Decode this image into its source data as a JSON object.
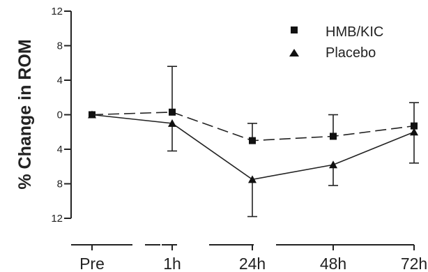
{
  "chart_data": {
    "type": "line",
    "title": "",
    "xlabel": "",
    "ylabel": "% Change in ROM",
    "categories": [
      "Pre",
      "1h",
      "24h",
      "48h",
      "72h"
    ],
    "y_ticks": [
      "12",
      "8",
      "4",
      "0",
      "4",
      "8",
      "12"
    ],
    "ylim": [
      -12,
      12
    ],
    "grid": false,
    "legend_position": "top-right",
    "series": [
      {
        "name": "HMB/KIC",
        "marker": "square",
        "line_style": "dashed",
        "values": [
          0,
          0.3,
          -3,
          -2.5,
          -1.3
        ],
        "error_plus": [
          0,
          5.3,
          2.0,
          2.5,
          2.7
        ],
        "error_minus": [
          0,
          0,
          0,
          0,
          0
        ]
      },
      {
        "name": "Placebo",
        "marker": "triangle",
        "line_style": "solid",
        "values": [
          0,
          -1,
          -7.5,
          -5.8,
          -2.0
        ],
        "error_plus": [
          0,
          0,
          0,
          0,
          0
        ],
        "error_minus": [
          0,
          3.2,
          4.3,
          2.4,
          3.6
        ]
      }
    ]
  }
}
